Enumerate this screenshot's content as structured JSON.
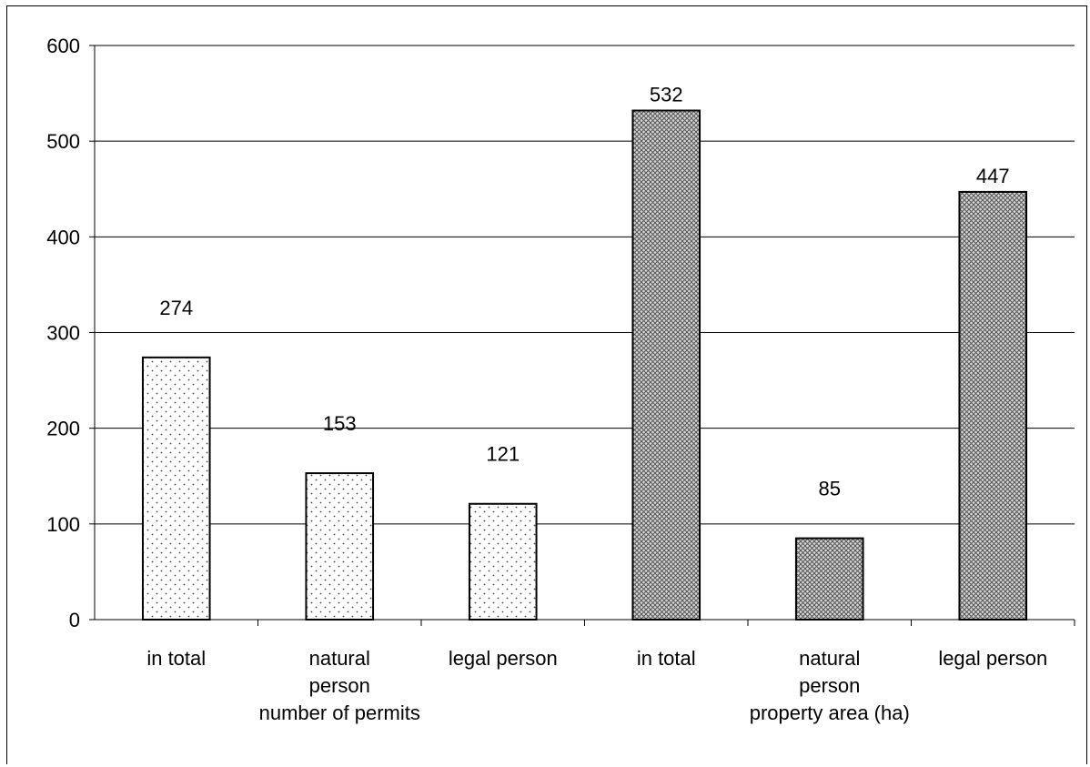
{
  "chart_data": {
    "type": "bar",
    "title": "",
    "xlabel": "",
    "ylabel": "",
    "ylim": [
      0,
      600
    ],
    "yticks": [
      0,
      100,
      200,
      300,
      400,
      500,
      600
    ],
    "grid": true,
    "groups": [
      {
        "label": "number of permits",
        "pattern": "dots",
        "bars": [
          {
            "label": [
              "in total"
            ],
            "value": 274
          },
          {
            "label": [
              "natural",
              "person"
            ],
            "value": 153
          },
          {
            "label": [
              "legal person"
            ],
            "value": 121
          }
        ]
      },
      {
        "label": "property area (ha)",
        "pattern": "crosshatch",
        "bars": [
          {
            "label": [
              "in total"
            ],
            "value": 532
          },
          {
            "label": [
              "natural",
              "person"
            ],
            "value": 85
          },
          {
            "label": [
              "legal person"
            ],
            "value": 447
          }
        ]
      }
    ]
  },
  "colors": {
    "bar_outline": "#000000",
    "dot_fill": "#444444",
    "hatch_fill": "#555555",
    "grid": "#000000"
  }
}
